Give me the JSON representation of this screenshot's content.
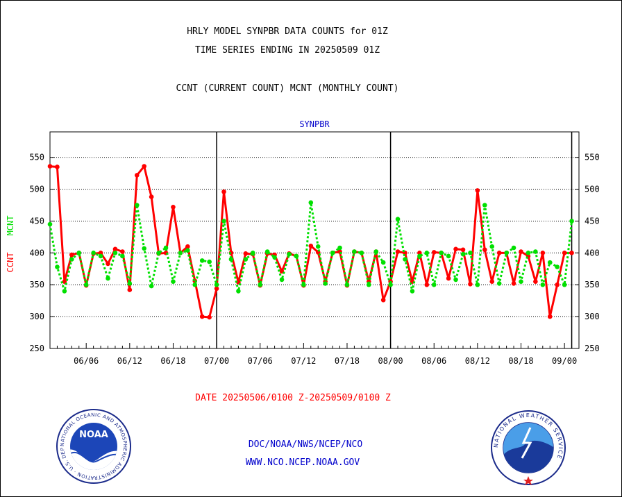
{
  "header": {
    "line1": "HRLY MODEL SYNPBR DATA COUNTS for 01Z",
    "line2": "TIME SERIES ENDING IN 20250509 01Z",
    "line3": "CCNT (CURRENT COUNT) MCNT (MONTHLY COUNT)"
  },
  "footer": {
    "date_range": "DATE 20250506/0100 Z-20250509/0100 Z",
    "link1": "DOC/NOAA/NWS/NCEP/NCO",
    "link2": "WWW.NCO.NCEP.NOAA.GOV"
  },
  "logos": {
    "noaa_text": "NOAA",
    "noaa_ring": "NATIONAL OCEANIC AND ATMOSPHERIC ADMINISTRATION · U.S. DEPARTMENT OF COMMERCE",
    "nws_ring": "NATIONAL WEATHER SERVICE"
  },
  "colors": {
    "ccnt": "#ff0000",
    "mcnt": "#00e000",
    "title": "#000000",
    "subtitle": "#0000cc",
    "date_text": "#ff0000",
    "link_text": "#0000cc"
  },
  "chart_data": {
    "type": "line",
    "title": "SYNPBR",
    "ylabel_left_ccnt": "CCNT",
    "ylabel_left_mcnt": "MCNT",
    "ylim": [
      250,
      590
    ],
    "y_ticks": [
      250,
      300,
      350,
      400,
      450,
      500,
      550
    ],
    "x_tick_labels": [
      "06/06",
      "06/12",
      "06/18",
      "07/00",
      "07/06",
      "07/12",
      "07/18",
      "08/00",
      "08/06",
      "08/12",
      "08/18",
      "09/00"
    ],
    "x_tick_hours": [
      5,
      11,
      17,
      23,
      29,
      35,
      41,
      47,
      53,
      59,
      65,
      71
    ],
    "day_boundaries_hours": [
      23,
      47,
      72
    ],
    "grid": true,
    "series": [
      {
        "name": "CCNT",
        "hours": [
          0,
          1,
          2,
          3,
          4,
          5,
          6,
          7,
          8,
          9,
          10,
          11,
          12,
          13,
          14,
          15,
          16,
          17,
          18,
          19,
          20,
          21,
          22,
          23,
          24,
          25,
          26,
          27,
          28,
          29,
          30,
          31,
          32,
          33,
          34,
          35,
          36,
          37,
          38,
          39,
          40,
          41,
          42,
          43,
          44,
          45,
          46,
          47,
          48,
          49,
          50,
          51,
          52,
          53,
          54,
          55,
          56,
          57,
          58,
          59,
          60,
          61,
          62,
          63,
          64,
          65,
          66,
          67,
          68,
          69,
          70,
          71,
          72
        ],
        "values": [
          536,
          535,
          355,
          397,
          400,
          349,
          399,
          400,
          383,
          406,
          402,
          342,
          522,
          536,
          488,
          399,
          400,
          472,
          400,
          410,
          356,
          300,
          299,
          344,
          496,
          400,
          354,
          399,
          398,
          349,
          399,
          397,
          371,
          399,
          395,
          349,
          411,
          401,
          355,
          400,
          402,
          349,
          402,
          400,
          355,
          402,
          326,
          355,
          402,
          400,
          355,
          400,
          350,
          401,
          400,
          360,
          406,
          405,
          351,
          498,
          405,
          355,
          400,
          400,
          352,
          402,
          395,
          355,
          400,
          300,
          350,
          400,
          400
        ]
      },
      {
        "name": "MCNT",
        "hours": [
          0,
          1,
          2,
          3,
          4,
          5,
          6,
          7,
          8,
          9,
          10,
          11,
          12,
          13,
          14,
          15,
          16,
          17,
          18,
          19,
          20,
          21,
          22,
          23,
          24,
          25,
          26,
          27,
          28,
          29,
          30,
          31,
          32,
          33,
          34,
          35,
          36,
          37,
          38,
          39,
          40,
          41,
          42,
          43,
          44,
          45,
          46,
          47,
          48,
          49,
          50,
          51,
          52,
          53,
          54,
          55,
          56,
          57,
          58,
          59,
          60,
          61,
          62,
          63,
          64,
          65,
          66,
          67,
          68,
          69,
          70,
          71,
          72
        ],
        "values": [
          445,
          378,
          340,
          390,
          400,
          350,
          400,
          395,
          360,
          400,
          395,
          352,
          475,
          407,
          348,
          400,
          408,
          355,
          400,
          404,
          350,
          388,
          386,
          350,
          450,
          390,
          340,
          390,
          400,
          350,
          402,
          393,
          358,
          398,
          395,
          350,
          479,
          410,
          352,
          400,
          408,
          350,
          402,
          400,
          350,
          402,
          385,
          350,
          453,
          390,
          340,
          395,
          400,
          350,
          400,
          395,
          358,
          398,
          400,
          350,
          475,
          410,
          352,
          400,
          408,
          355,
          400,
          402,
          350,
          385,
          378,
          350,
          450
        ]
      }
    ]
  }
}
